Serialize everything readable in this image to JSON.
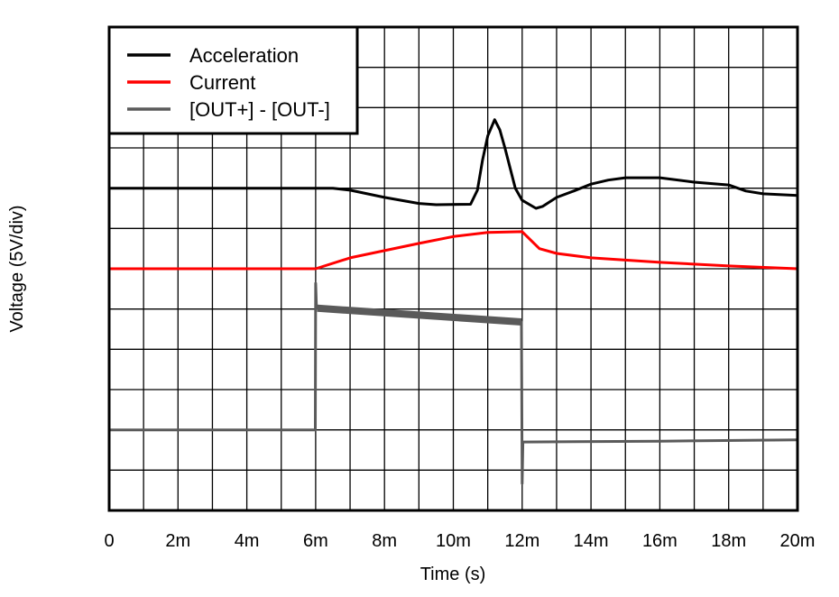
{
  "chart_data": {
    "type": "line",
    "title": "",
    "xlabel": "Time (s)",
    "ylabel": "Voltage (5V/div)",
    "xlim": [
      0,
      20
    ],
    "ylim": [
      0,
      12
    ],
    "x_unit": "ms",
    "y_unit": "divisions (5V/div)",
    "x_ticks": [
      0,
      2,
      4,
      6,
      8,
      10,
      12,
      14,
      16,
      18,
      20
    ],
    "x_tick_labels": [
      "0",
      "2m",
      "4m",
      "6m",
      "8m",
      "10m",
      "12m",
      "14m",
      "16m",
      "18m",
      "20m"
    ],
    "grid": true,
    "x_grid_step": 1,
    "y_grid_step": 1,
    "legend_position": "top-left",
    "series": [
      {
        "name": "Acceleration",
        "color": "#000000",
        "x": [
          0,
          6.5,
          7,
          8,
          9,
          9.5,
          10.5,
          10.7,
          10.85,
          11.0,
          11.2,
          11.35,
          11.5,
          11.8,
          12.0,
          12.4,
          12.6,
          13,
          13.5,
          14,
          14.5,
          15,
          16,
          17,
          18,
          18.5,
          19,
          20
        ],
        "y": [
          8.0,
          8.0,
          7.95,
          7.77,
          7.62,
          7.59,
          7.6,
          7.95,
          8.7,
          9.3,
          9.7,
          9.45,
          9.0,
          8.0,
          7.7,
          7.5,
          7.55,
          7.77,
          7.93,
          8.1,
          8.2,
          8.26,
          8.26,
          8.15,
          8.08,
          7.93,
          7.86,
          7.82
        ]
      },
      {
        "name": "Current",
        "color": "#ff0000",
        "x": [
          0,
          6,
          7,
          8,
          9,
          10,
          11,
          12,
          12.5,
          13,
          14,
          16,
          18,
          20
        ],
        "y": [
          6.0,
          6.0,
          6.27,
          6.45,
          6.63,
          6.8,
          6.9,
          6.92,
          6.5,
          6.38,
          6.27,
          6.16,
          6.07,
          6.0
        ]
      },
      {
        "name": "[OUT+] - [OUT-]",
        "color": "#5a5a5a",
        "x": [
          0,
          5.99,
          6.0,
          6.02,
          6.05,
          9,
          11.98,
          12.0,
          12.02,
          12.05,
          16,
          20
        ],
        "y": [
          2.0,
          2.0,
          5.64,
          5.1,
          5.02,
          4.85,
          4.68,
          0.67,
          1.7,
          1.7,
          1.72,
          1.75
        ],
        "noisy_range": [
          6.0,
          12.0
        ]
      }
    ]
  }
}
